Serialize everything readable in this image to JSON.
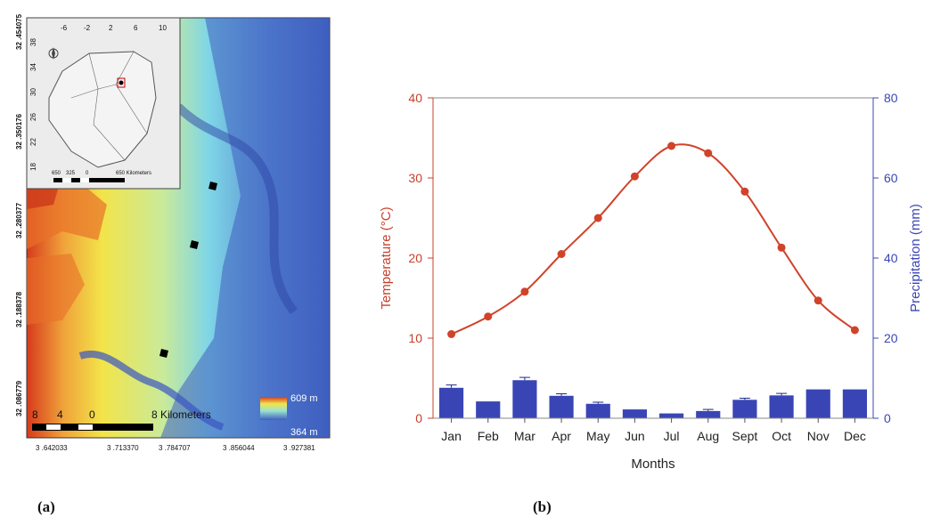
{
  "captions": {
    "a": "(a)",
    "b": "(b)"
  },
  "map": {
    "left_ticks": [
      "32 .454075",
      "32 .350176",
      "32 .280377",
      "32 .188378",
      "32 .086779"
    ],
    "bottom_ticks": [
      "3 .642033",
      "3 .713370",
      "3 .784707",
      "3 .856044",
      "3 .927381"
    ],
    "scale_labels": [
      "8",
      "4",
      "0",
      "8 Kilometers"
    ],
    "legend_high": "609 m",
    "legend_low": "364 m",
    "inset": {
      "top_ticks": [
        "-6",
        "-2",
        "2",
        "6",
        "10"
      ],
      "left_ticks": [
        "38",
        "34",
        "30",
        "26",
        "22",
        "18"
      ],
      "scale_labels": [
        "650",
        "325",
        "0",
        "650 Kilometers"
      ]
    },
    "colors": {
      "high": "#d63a1c",
      "mid": "#f2e44a",
      "low_mid": "#7fd6e6",
      "low": "#3f5fbf",
      "marker": "#000000"
    }
  },
  "chart_data": {
    "type": "bar+line",
    "categories": [
      "Jan",
      "Feb",
      "Mar",
      "Apr",
      "May",
      "Jun",
      "Jul",
      "Aug",
      "Sept",
      "Oct",
      "Nov",
      "Dec"
    ],
    "xlabel": "Months",
    "series": [
      {
        "name": "Temperature (°C)",
        "kind": "line",
        "axis": "left",
        "color": "#d0432a",
        "values": [
          10.5,
          12.7,
          15.8,
          20.5,
          25.0,
          30.2,
          34.0,
          33.1,
          28.3,
          21.3,
          14.7,
          11.0
        ]
      },
      {
        "name": "Precipitation (mm)",
        "kind": "bar",
        "axis": "right",
        "color": "#3a45b5",
        "values": [
          7.6,
          4.2,
          9.5,
          5.6,
          3.6,
          2.2,
          1.2,
          1.8,
          4.6,
          5.7,
          7.2,
          7.2
        ],
        "errors": [
          0.7,
          0,
          0.7,
          0.5,
          0.4,
          0,
          0,
          0.4,
          0.4,
          0.5,
          0,
          0
        ]
      }
    ],
    "ylabel_left": "Temperature (°C)",
    "ylabel_right": "Precipitation (mm)",
    "ylim_left": [
      0,
      40
    ],
    "yticks_left": [
      "0",
      "10",
      "20",
      "30",
      "40"
    ],
    "ylim_right": [
      0,
      80
    ],
    "yticks_right": [
      "0",
      "20",
      "40",
      "60",
      "80"
    ],
    "grid": false,
    "left_axis_color": "#c8402a",
    "right_axis_color": "#3a45b5"
  }
}
